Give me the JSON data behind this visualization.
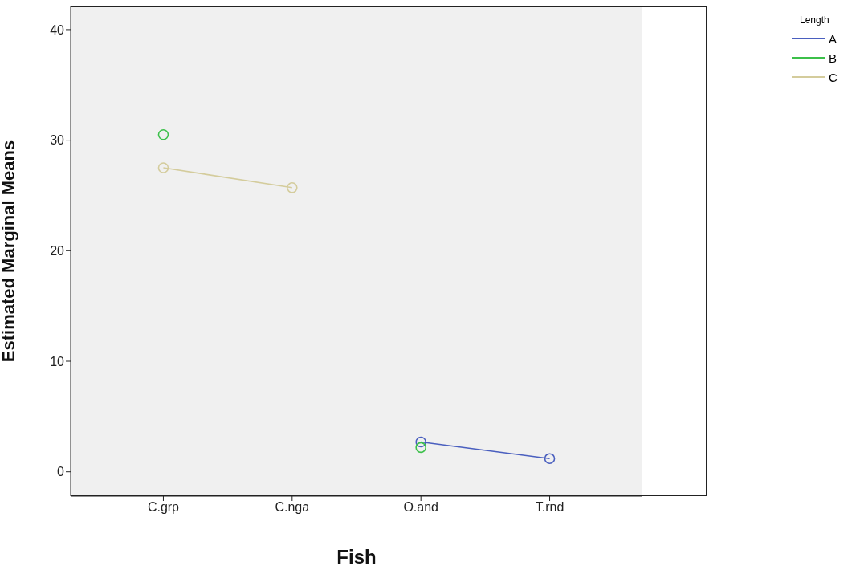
{
  "chart_data": {
    "type": "line",
    "xlabel": "Fish",
    "ylabel": "Estimated Marginal Means",
    "legend_title": "Length",
    "categories": [
      "C.grp",
      "C.nga",
      "O.and",
      "T.rnd"
    ],
    "series": [
      {
        "name": "A",
        "color": "#4a5fbf",
        "values": [
          null,
          null,
          2.7,
          1.2
        ]
      },
      {
        "name": "B",
        "type": "scatter",
        "color": "#3cc04a",
        "values": [
          30.5,
          null,
          2.2,
          null
        ]
      },
      {
        "name": "C",
        "color": "#d4cc9c",
        "values": [
          27.5,
          25.7,
          null,
          null
        ]
      }
    ],
    "ylim": [
      -2.2,
      42.1
    ],
    "yticks": [
      0,
      10,
      20,
      30,
      40
    ],
    "marker": "circle",
    "legend": "top right"
  }
}
